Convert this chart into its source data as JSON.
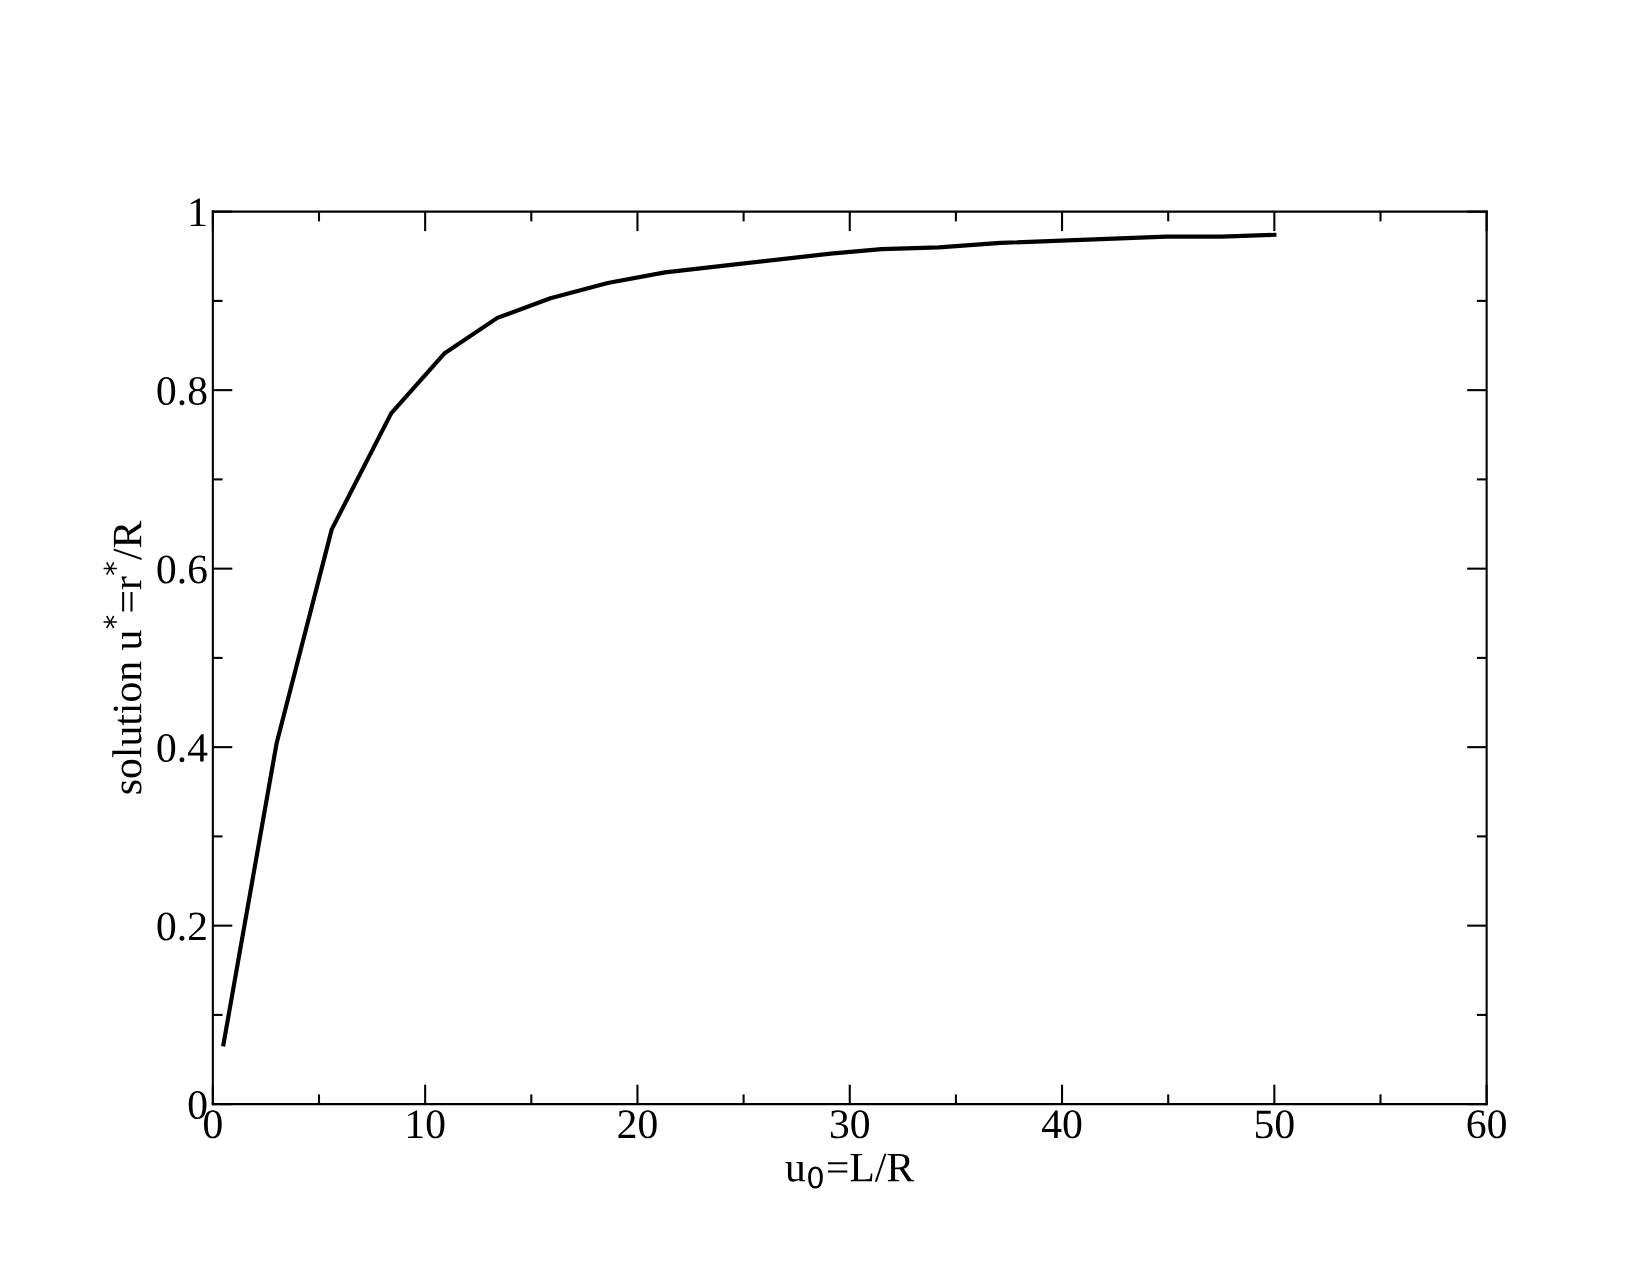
{
  "chart_data": {
    "type": "line",
    "xlabel": "u$_{0}$=L/R",
    "ylabel": "solution u$^{*}$=r$^{*}$/R",
    "x": [
      0.5,
      3.0,
      5.6,
      8.4,
      10.9,
      13.4,
      15.9,
      18.6,
      21.3,
      29.1,
      31.5,
      34.2,
      37.1,
      44.9,
      47.5,
      50.0
    ],
    "series": [
      {
        "color": "#000000",
        "values": [
          0.067,
          0.404,
          0.644,
          0.774,
          0.841,
          0.881,
          0.903,
          0.92,
          0.932,
          0.953,
          0.958,
          0.96,
          0.965,
          0.972,
          0.972,
          0.974
        ]
      }
    ],
    "xlim": [
      0,
      60
    ],
    "xticks": [
      0,
      10,
      20,
      30,
      40,
      50,
      60
    ],
    "ylim": [
      0,
      1
    ],
    "yticks": [
      0,
      0.2,
      0.4,
      0.6,
      0.8,
      1
    ],
    "grid": false,
    "marker": "none",
    "line_style": "solid"
  }
}
